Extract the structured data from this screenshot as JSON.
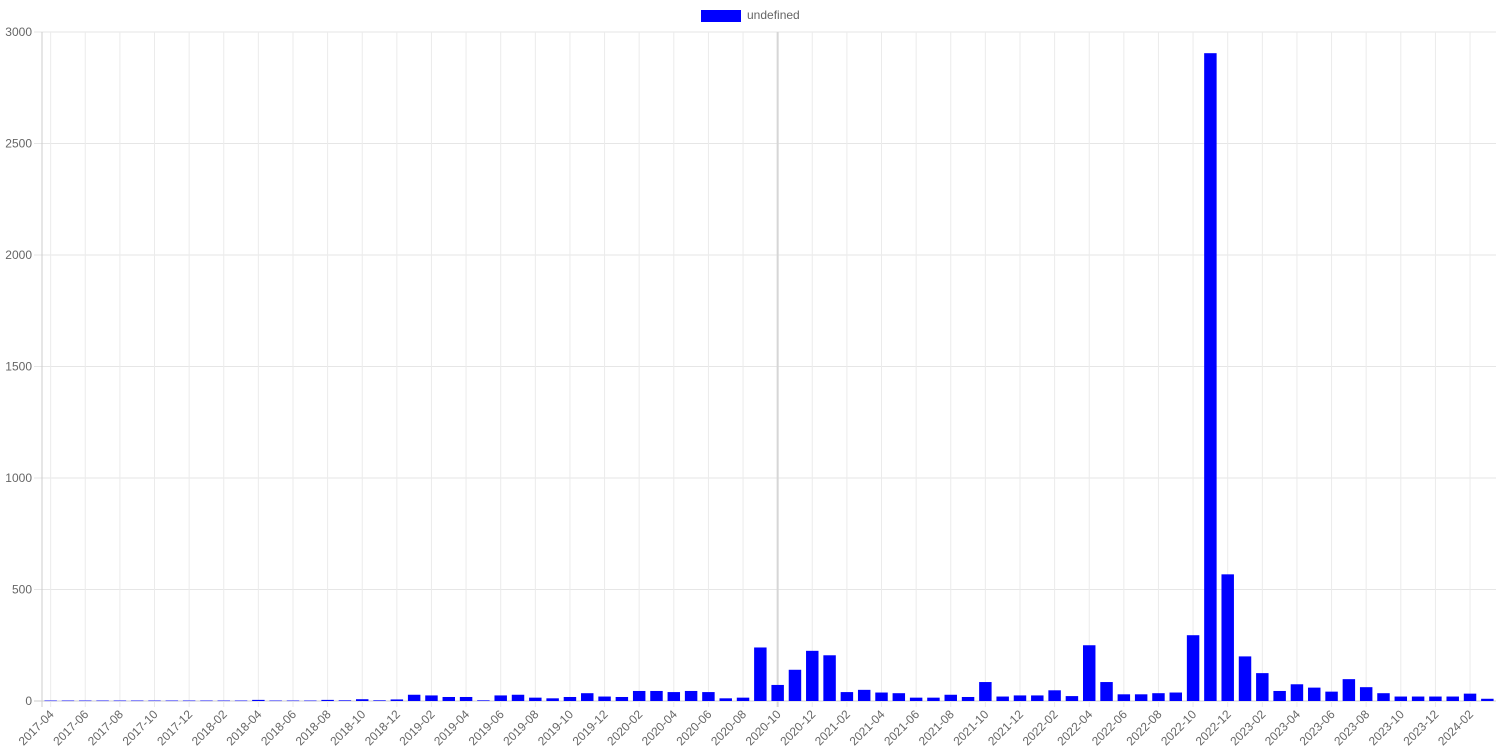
{
  "legend": {
    "label": "undefined",
    "swatch_color": "#0000ff"
  },
  "chart_data": {
    "type": "bar",
    "title": "",
    "xlabel": "",
    "ylabel": "",
    "ylim": [
      0,
      3000
    ],
    "yticks": [
      0,
      500,
      1000,
      1500,
      2000,
      2500,
      3000
    ],
    "grid": true,
    "legend_position": "top-center",
    "bar_color": "#0000ff",
    "categories": [
      "2017-04",
      "2017-05",
      "2017-06",
      "2017-07",
      "2017-08",
      "2017-09",
      "2017-10",
      "2017-11",
      "2017-12",
      "2018-01",
      "2018-02",
      "2018-03",
      "2018-04",
      "2018-05",
      "2018-06",
      "2018-07",
      "2018-08",
      "2018-09",
      "2018-10",
      "2018-11",
      "2018-12",
      "2019-01",
      "2019-02",
      "2019-03",
      "2019-04",
      "2019-05",
      "2019-06",
      "2019-07",
      "2019-08",
      "2019-09",
      "2019-10",
      "2019-11",
      "2019-12",
      "2020-01",
      "2020-02",
      "2020-03",
      "2020-04",
      "2020-05",
      "2020-06",
      "2020-07",
      "2020-08",
      "2020-09",
      "2020-10",
      "2020-11",
      "2020-12",
      "2021-01",
      "2021-02",
      "2021-03",
      "2021-04",
      "2021-05",
      "2021-06",
      "2021-07",
      "2021-08",
      "2021-09",
      "2021-10",
      "2021-11",
      "2021-12",
      "2022-01",
      "2022-02",
      "2022-03",
      "2022-04",
      "2022-05",
      "2022-06",
      "2022-07",
      "2022-08",
      "2022-09",
      "2022-10",
      "2022-11",
      "2022-12",
      "2023-01",
      "2023-02",
      "2023-03",
      "2023-04",
      "2023-05",
      "2023-06",
      "2023-07",
      "2023-08",
      "2023-09",
      "2023-10",
      "2023-11",
      "2023-12",
      "2024-01",
      "2024-02",
      "2024-03"
    ],
    "tick_labels": [
      "2017-04",
      "2017-06",
      "2017-08",
      "2017-10",
      "2017-12",
      "2018-02",
      "2018-04",
      "2018-06",
      "2018-08",
      "2018-10",
      "2018-12",
      "2019-02",
      "2019-04",
      "2019-06",
      "2019-08",
      "2019-10",
      "2019-12",
      "2020-02",
      "2020-04",
      "2020-06",
      "2020-08",
      "2020-10",
      "2020-12",
      "2021-02",
      "2021-04",
      "2021-06",
      "2021-08",
      "2021-10",
      "2021-12",
      "2022-02",
      "2022-04",
      "2022-06",
      "2022-08",
      "2022-10",
      "2022-12",
      "2023-02",
      "2023-04",
      "2023-06",
      "2023-08",
      "2023-10",
      "2023-12",
      "2024-02"
    ],
    "values": [
      2,
      2,
      2,
      2,
      2,
      2,
      2,
      2,
      2,
      2,
      2,
      2,
      5,
      2,
      2,
      2,
      5,
      3,
      8,
      3,
      7,
      28,
      25,
      18,
      18,
      3,
      25,
      28,
      15,
      12,
      18,
      35,
      20,
      18,
      45,
      45,
      40,
      45,
      40,
      12,
      15,
      240,
      72,
      140,
      225,
      205,
      40,
      50,
      38,
      35,
      15,
      15,
      28,
      18,
      85,
      20,
      25,
      25,
      48,
      22,
      250,
      85,
      30,
      30,
      35,
      38,
      295,
      2905,
      568,
      200,
      125,
      45,
      75,
      60,
      42,
      98,
      62,
      35,
      20,
      20,
      20,
      20,
      33,
      10
    ]
  }
}
